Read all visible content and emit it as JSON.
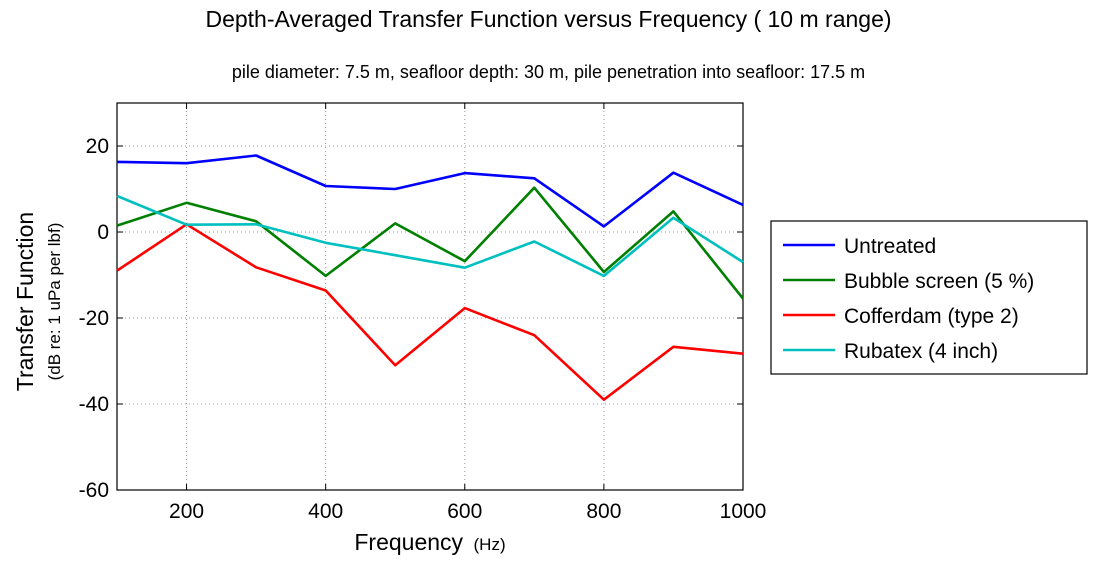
{
  "chart_data": {
    "type": "line",
    "title": "Depth-Averaged Transfer Function versus Frequency ( 10 m range)",
    "subtitle": "pile diameter: 7.5 m, seafloor depth: 30 m,  pile penetration into seafloor: 17.5 m",
    "xlabel": {
      "main": "Frequency",
      "unit": "(Hz)"
    },
    "ylabel": {
      "main": "Transfer Function",
      "unit": "(dB re: 1 uPa per lbf)"
    },
    "xlim": [
      100,
      1000
    ],
    "ylim": [
      -60,
      30
    ],
    "xticks": [
      200,
      400,
      600,
      800,
      1000
    ],
    "yticks": [
      -60,
      -40,
      -20,
      0,
      20
    ],
    "grid": true,
    "legend_position": "outside-right",
    "x": [
      100,
      200,
      300,
      400,
      500,
      600,
      700,
      800,
      900,
      1000
    ],
    "series": [
      {
        "name": "Untreated",
        "color": "#0000ff",
        "values": [
          16.3,
          16,
          17.8,
          10.7,
          10,
          13.7,
          12.5,
          1.3,
          13.8,
          6.3
        ]
      },
      {
        "name": "Bubble screen (5 %)",
        "color": "#008000",
        "values": [
          1.5,
          6.8,
          2.5,
          -10.2,
          2,
          -6.8,
          10.3,
          -9.3,
          4.8,
          -15.5
        ]
      },
      {
        "name": "Cofferdam (type 2)",
        "color": "#ff0000",
        "values": [
          -9,
          1.8,
          -8.2,
          -13.6,
          -31,
          -17.7,
          -24,
          -39,
          -26.7,
          -28.3
        ]
      },
      {
        "name": "Rubatex (4 inch)",
        "color": "#00bfbf",
        "values": [
          8.4,
          1.7,
          1.8,
          -2.5,
          -5.4,
          -8.3,
          -2.2,
          -10.2,
          3.3,
          -7
        ]
      }
    ]
  }
}
